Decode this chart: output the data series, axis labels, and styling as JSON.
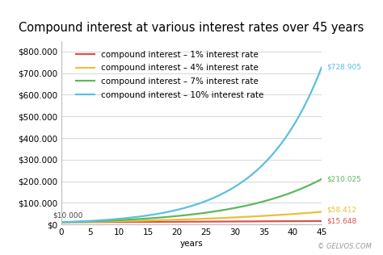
{
  "title": "Compound interest at various interest rates over 45 years",
  "xlabel": "years",
  "principal": 10000,
  "years": 45,
  "rates": [
    0.01,
    0.04,
    0.07,
    0.1
  ],
  "rate_labels": [
    "compound interest – 1% interest rate",
    "compound interest – 4% interest rate",
    "compound interest – 7% interest rate",
    "compound interest – 10% interest rate"
  ],
  "line_colors": [
    "#d9534f",
    "#e8c13a",
    "#5cb85c",
    "#5bc0de"
  ],
  "end_labels": [
    "$15.648",
    "$58.412",
    "$210.025",
    "$728.905"
  ],
  "start_label": "$10.000",
  "watermark": "© GELVOS.COM",
  "ylim": [
    0,
    850000
  ],
  "yticks": [
    0,
    100000,
    200000,
    300000,
    400000,
    500000,
    600000,
    700000,
    800000
  ],
  "xticks": [
    0,
    5,
    10,
    15,
    20,
    25,
    30,
    35,
    40,
    45
  ],
  "bg_color": "#ffffff",
  "grid_color": "#d0d0d0",
  "title_fontsize": 10.5,
  "label_fontsize": 7.5,
  "legend_fontsize": 7.5,
  "annotation_fontsize": 6.5,
  "tick_fontsize": 7.5
}
